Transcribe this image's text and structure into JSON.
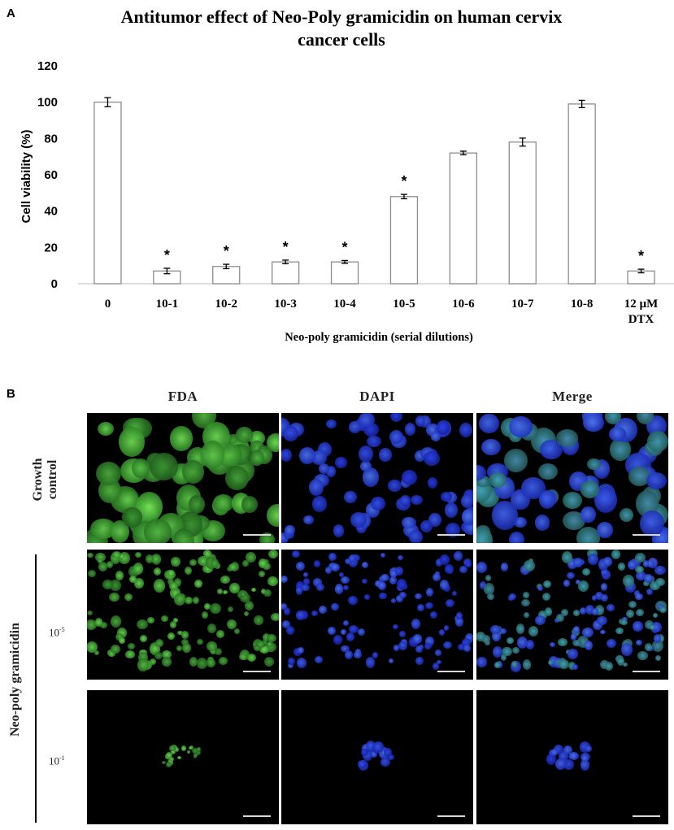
{
  "panel_a": {
    "letter": "A"
  },
  "panel_b": {
    "letter": "B",
    "columns": [
      "FDA",
      "DAPI",
      "Merge"
    ],
    "row_growth_label": "Growth control",
    "group_label": "Neo-poly gramicidin",
    "row_conc_1": {
      "base": "10",
      "exp": "-5"
    },
    "row_conc_2": {
      "base": "10",
      "exp": "-1"
    }
  },
  "chart_data": {
    "type": "bar",
    "title_line1": "Antitumor effect of Neo-Poly gramicidin on human cervix",
    "title_line2": "cancer cells",
    "xlabel": "Neo-poly gramicidin (serial dilutions)",
    "ylabel": "Cell viability (%)",
    "ylim": [
      0,
      120
    ],
    "yticks": [
      0,
      20,
      40,
      60,
      80,
      100,
      120
    ],
    "categories": [
      "0",
      "10-1",
      "10-2",
      "10-3",
      "10-4",
      "10-5",
      "10-6",
      "10-7",
      "10-8",
      "12 µM DTX"
    ],
    "values": [
      100,
      7,
      9.5,
      12,
      12,
      48,
      72,
      78,
      99,
      7
    ],
    "errors": [
      2.5,
      1.5,
      1.2,
      1,
      0.8,
      1.2,
      1,
      2.2,
      2,
      1
    ],
    "significant": [
      false,
      true,
      true,
      true,
      true,
      true,
      false,
      false,
      false,
      true
    ],
    "significance_marker": "*",
    "grid": false,
    "legend": "none"
  }
}
